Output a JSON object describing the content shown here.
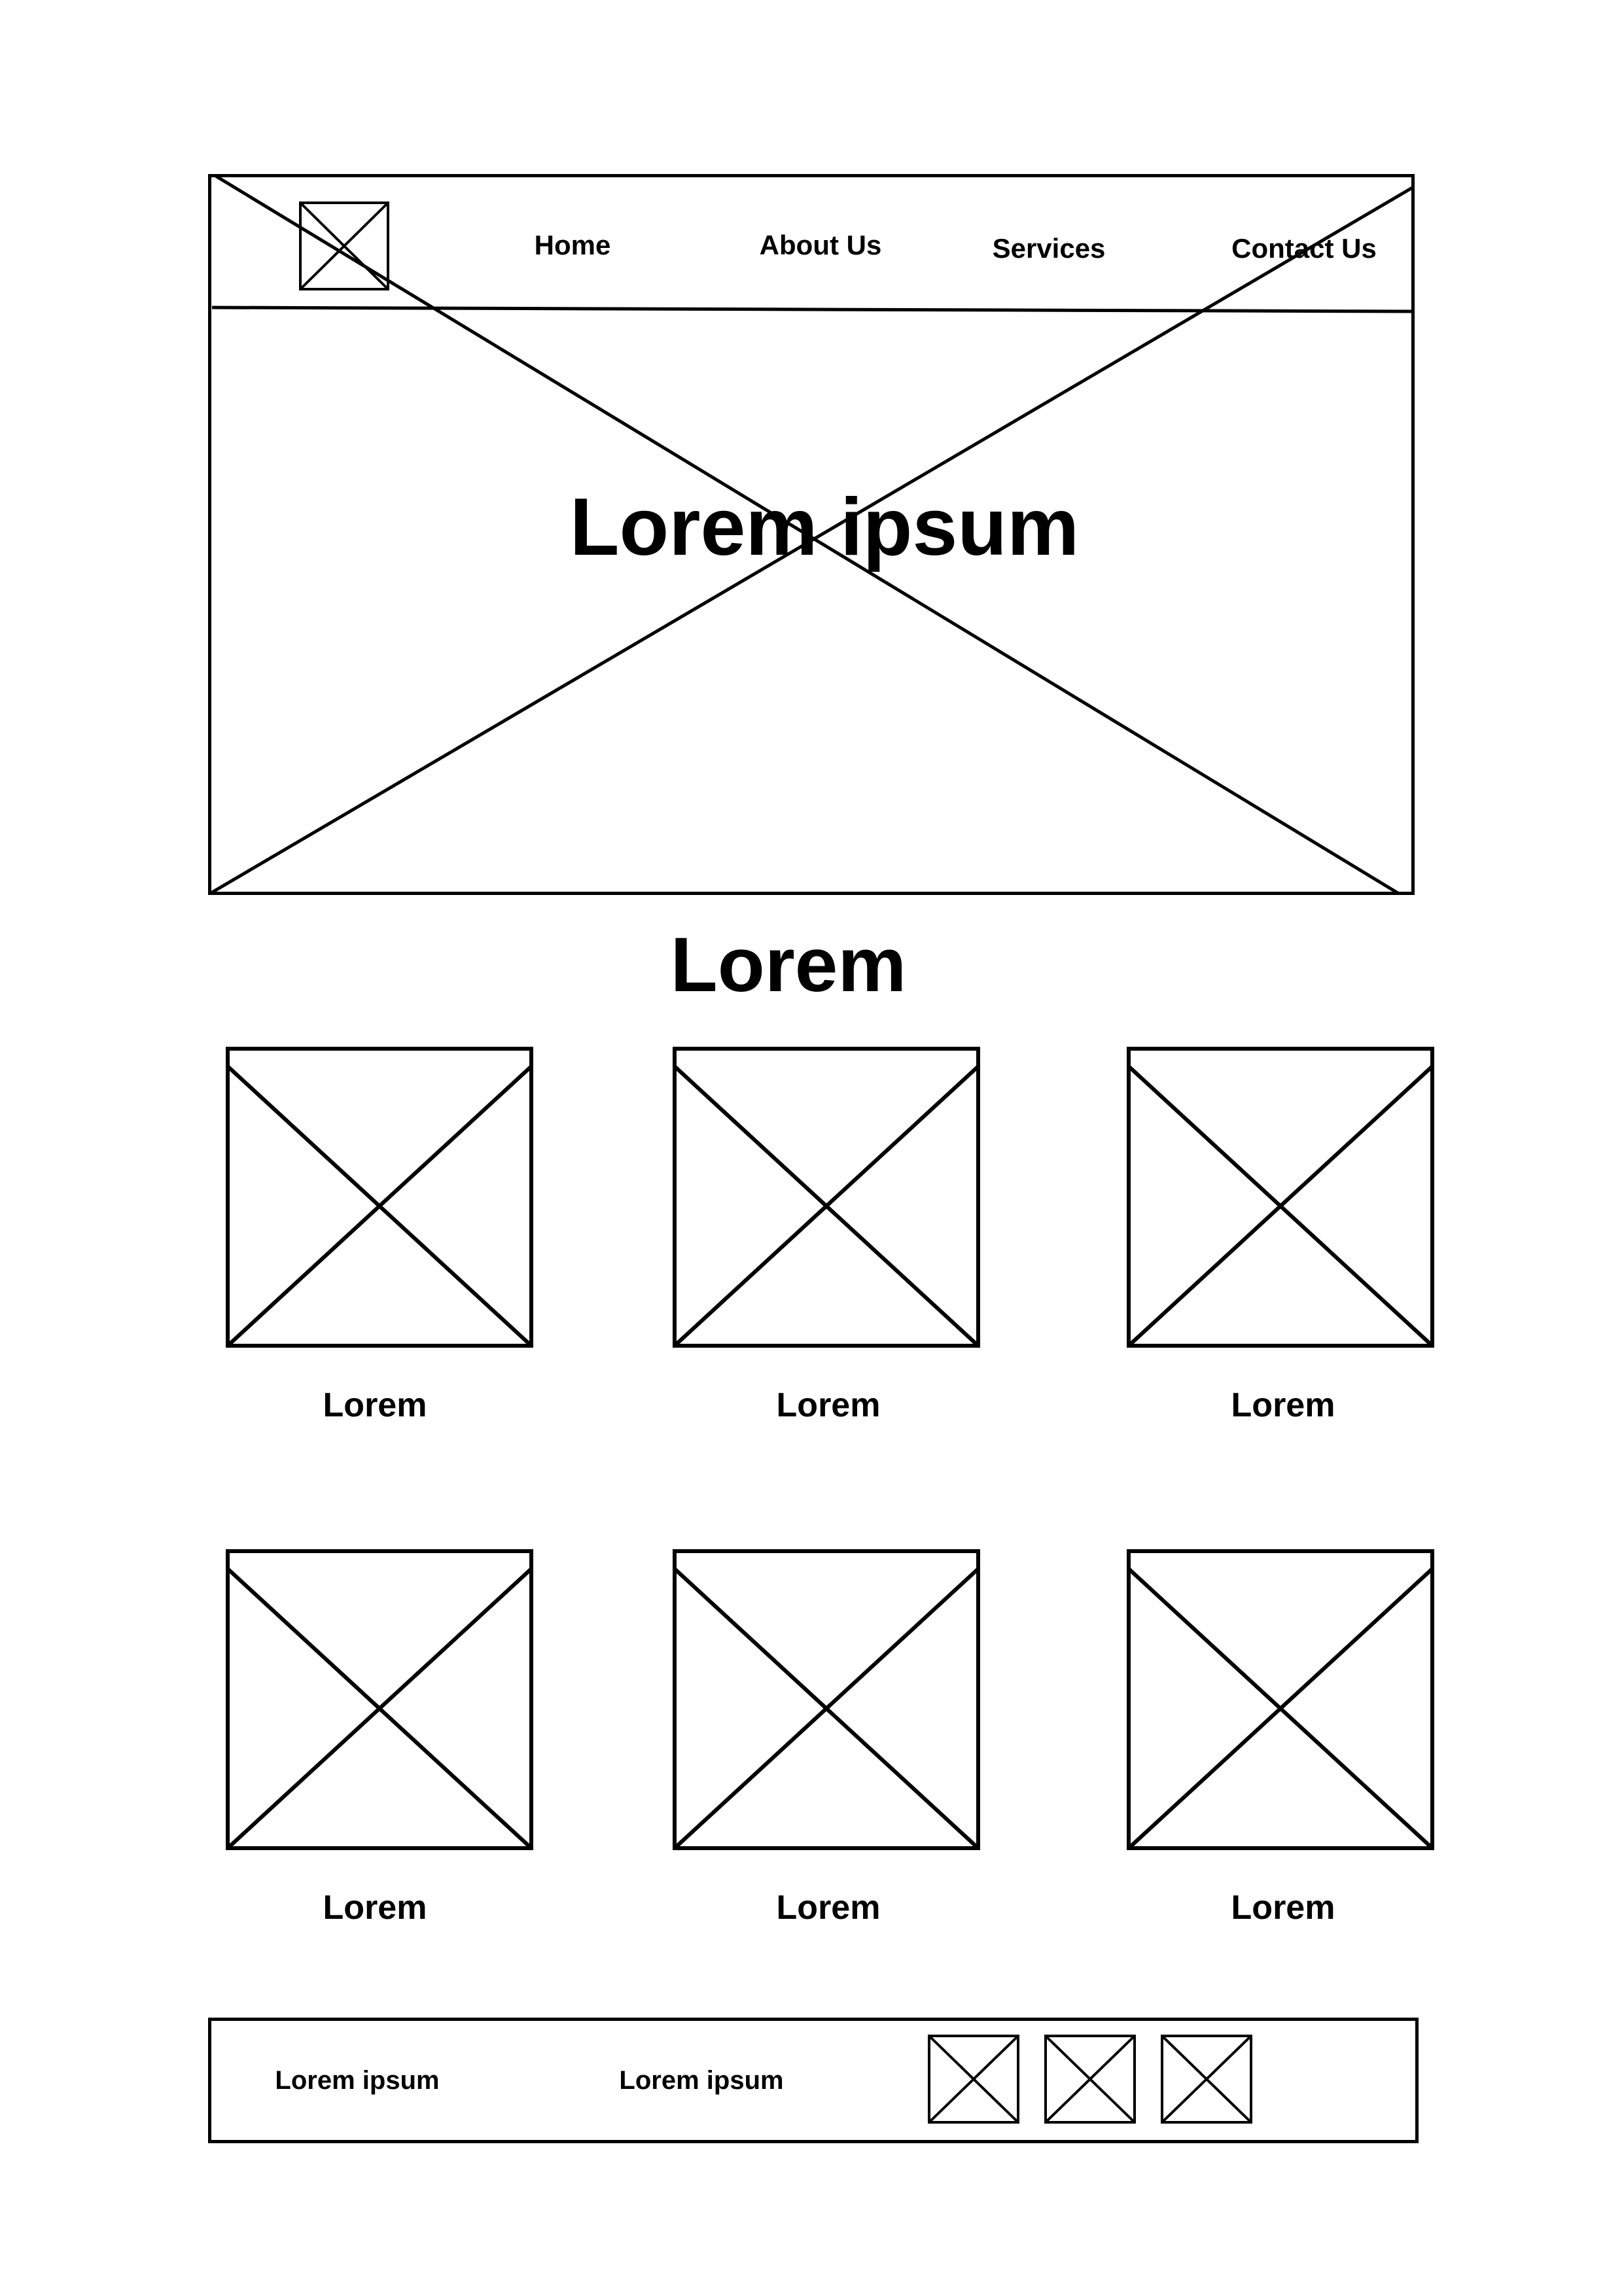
{
  "header": {
    "nav": [
      "Home",
      "About Us",
      "Services",
      "Contact Us"
    ]
  },
  "hero": {
    "title": "Lorem ipsum"
  },
  "section": {
    "title": "Lorem",
    "cards": [
      {
        "caption": "Lorem"
      },
      {
        "caption": "Lorem"
      },
      {
        "caption": "Lorem"
      },
      {
        "caption": "Lorem"
      },
      {
        "caption": "Lorem"
      },
      {
        "caption": "Lorem"
      }
    ]
  },
  "footer": {
    "links": [
      "Lorem ipsum",
      "Lorem ipsum"
    ],
    "social_icons": [
      "image-placeholder-icon",
      "image-placeholder-icon",
      "image-placeholder-icon"
    ]
  },
  "colors": {
    "stroke": "#000000",
    "background": "#ffffff"
  }
}
